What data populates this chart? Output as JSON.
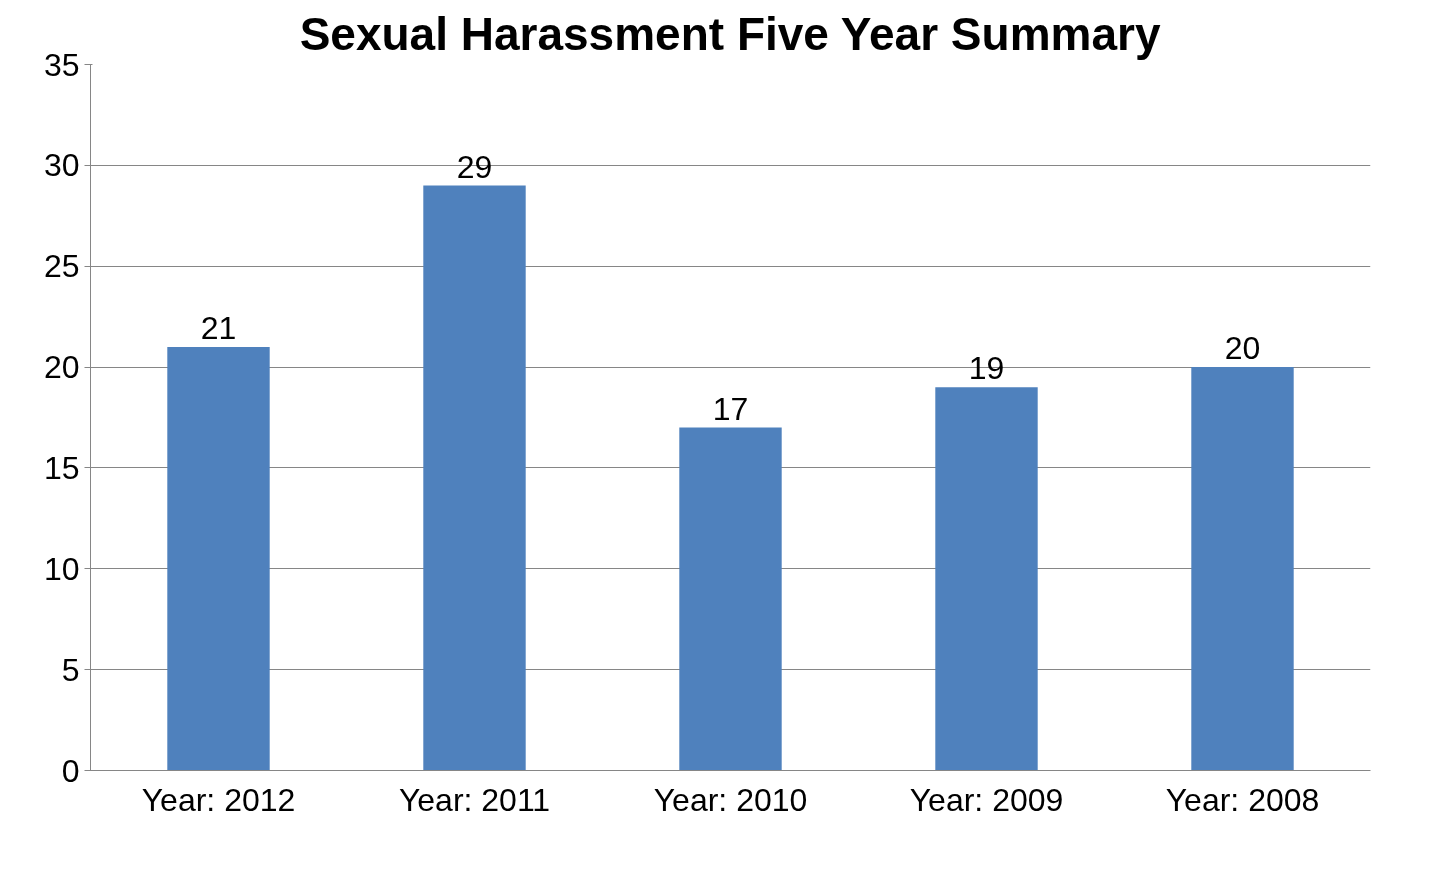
{
  "chart_data": {
    "type": "bar",
    "title": "Sexual Harassment Five Year Summary",
    "categories": [
      "Year: 2012",
      "Year: 2011",
      "Year: 2010",
      "Year: 2009",
      "Year: 2008"
    ],
    "values": [
      21,
      29,
      17,
      19,
      20
    ],
    "color": "#4f81bd",
    "ylim": [
      0,
      35
    ],
    "yticks": [
      0,
      5,
      10,
      15,
      20,
      25,
      30,
      35
    ],
    "grid": "y",
    "data_labels": true
  }
}
